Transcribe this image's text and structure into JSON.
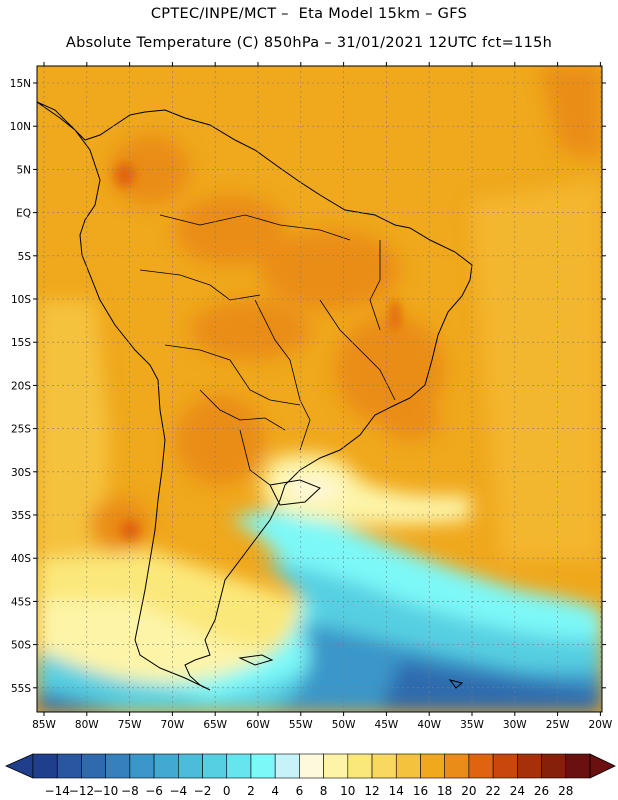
{
  "header": {
    "line1": "CPTEC/INPE/MCT –  Eta Model 15km – GFS",
    "line2": "Absolute Temperature (C) 850hPa – 31/01/2021 12UTC fct=115h"
  },
  "map": {
    "lat_ticks": [
      "15N",
      "10N",
      "5N",
      "EQ",
      "5S",
      "10S",
      "15S",
      "20S",
      "25S",
      "30S",
      "35S",
      "40S",
      "45S",
      "50S",
      "55S"
    ],
    "lon_ticks": [
      "85W",
      "80W",
      "75W",
      "70W",
      "65W",
      "60W",
      "55W",
      "50W",
      "45W",
      "40W",
      "35W",
      "30W",
      "25W",
      "20W"
    ],
    "grid": true,
    "field": "Absolute Temperature (C) at 850hPa",
    "features": [
      "coastlines",
      "country-borders",
      "state-borders"
    ]
  },
  "colorbar": {
    "labels": [
      "−14",
      "−12",
      "−10",
      "−8",
      "−6",
      "−4",
      "−2",
      "0",
      "2",
      "4",
      "6",
      "8",
      "10",
      "12",
      "14",
      "16",
      "18",
      "20",
      "22",
      "24",
      "26",
      "28"
    ],
    "colors": [
      "#1f3e8c",
      "#2a55a0",
      "#2f6aae",
      "#3580bd",
      "#3b96c9",
      "#42a9d2",
      "#4bbcd9",
      "#56cfe2",
      "#66e5ef",
      "#7df8f8",
      "#c6f2fa",
      "#fef8dc",
      "#fdf4a8",
      "#fbe87a",
      "#f8d860",
      "#f5c23e",
      "#f0a81c",
      "#ea8d18",
      "#e06410",
      "#c9460c",
      "#a6300a",
      "#86200a",
      "#6a1010"
    ],
    "under_color": "#1f3e8c",
    "over_color": "#6a1010"
  }
}
